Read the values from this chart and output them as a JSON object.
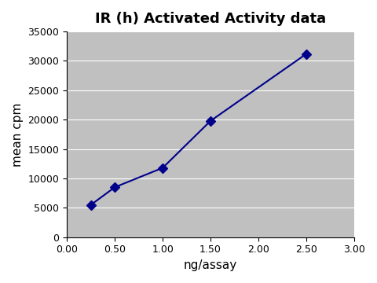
{
  "title": "IR (h) Activated Activity data",
  "xlabel": "ng/assay",
  "ylabel": "mean cpm",
  "x_data": [
    0.25,
    0.5,
    1.0,
    1.5,
    2.5
  ],
  "y_data": [
    5500,
    8500,
    11800,
    19800,
    31200
  ],
  "xlim": [
    0.0,
    3.0
  ],
  "ylim": [
    0,
    35000
  ],
  "xticks": [
    0.0,
    0.5,
    1.0,
    1.5,
    2.0,
    2.5,
    3.0
  ],
  "yticks": [
    0,
    5000,
    10000,
    15000,
    20000,
    25000,
    30000,
    35000
  ],
  "line_color": "#00008B",
  "marker": "D",
  "marker_size": 6,
  "marker_facecolor": "#00008B",
  "bg_color": "#C0C0C0",
  "fig_bg_color": "#FFFFFF",
  "title_fontsize": 13,
  "label_fontsize": 11,
  "tick_fontsize": 9
}
